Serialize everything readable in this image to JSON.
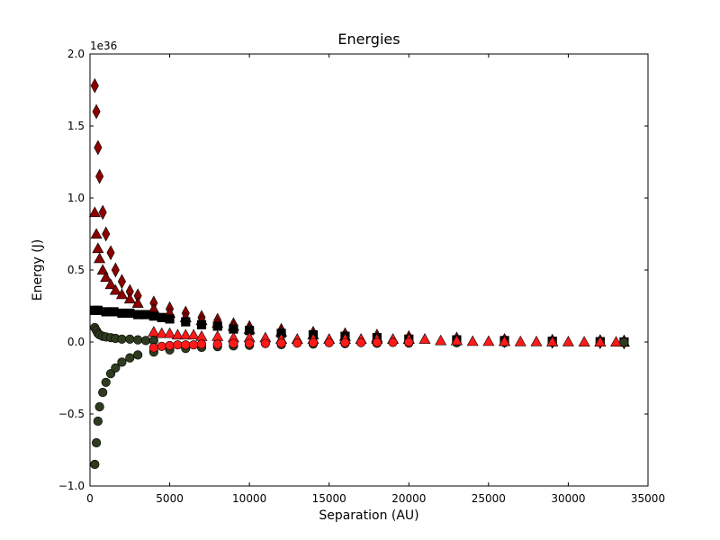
{
  "chart_data": {
    "type": "scatter",
    "title": "Energies",
    "xlabel": "Separation (AU)",
    "ylabel": "Energy (J)",
    "y_offset_label": "1e36",
    "y_scale": 1e+36,
    "xlim": [
      0,
      35000
    ],
    "ylim": [
      -1.0,
      2.0
    ],
    "x_ticks": [
      0,
      5000,
      10000,
      15000,
      20000,
      25000,
      30000,
      35000
    ],
    "x_tick_labels": [
      "0",
      "5000",
      "10000",
      "15000",
      "20000",
      "25000",
      "30000",
      "35000"
    ],
    "y_ticks": [
      -1.0,
      -0.5,
      0.0,
      0.5,
      1.0,
      1.5,
      2.0
    ],
    "y_tick_labels": [
      "−1.0",
      "−0.5",
      "0.0",
      "0.5",
      "1.0",
      "1.5",
      "2.0"
    ],
    "grid": false,
    "series": [
      {
        "marker": "diamond",
        "color": "#8b0000",
        "x": [
          300,
          400,
          500,
          600,
          800,
          1000,
          1300,
          1600,
          2000,
          2500,
          3000,
          4000,
          5000,
          6000,
          7000,
          8000,
          9000,
          10000,
          12000,
          14000,
          16000,
          18000,
          20000,
          23000,
          26000,
          29000,
          32000,
          33500
        ],
        "y": [
          1.78,
          1.6,
          1.35,
          1.15,
          0.9,
          0.75,
          0.62,
          0.5,
          0.42,
          0.35,
          0.32,
          0.27,
          0.23,
          0.2,
          0.17,
          0.15,
          0.12,
          0.1,
          0.08,
          0.06,
          0.05,
          0.04,
          0.03,
          0.02,
          0.01,
          0.005,
          0.003,
          0.0
        ]
      },
      {
        "marker": "triangle",
        "color": "#8b0000",
        "x": [
          300,
          400,
          500,
          600,
          800,
          1000,
          1300,
          1600,
          2000,
          2500,
          3000,
          4000,
          5000,
          6000,
          7000,
          8000,
          9000,
          10000,
          12000,
          14000,
          16000,
          18000,
          20000,
          23000,
          26000,
          29000,
          32000,
          33500
        ],
        "y": [
          0.9,
          0.75,
          0.65,
          0.58,
          0.5,
          0.45,
          0.4,
          0.36,
          0.33,
          0.3,
          0.27,
          0.23,
          0.2,
          0.17,
          0.15,
          0.13,
          0.11,
          0.09,
          0.07,
          0.05,
          0.04,
          0.03,
          0.02,
          0.01,
          0.005,
          0.003,
          0.001,
          0.0
        ]
      },
      {
        "marker": "square",
        "color": "#000000",
        "x": [
          300,
          500,
          1000,
          1500,
          2000,
          2500,
          3000,
          3500,
          4000,
          4500,
          5000,
          6000,
          7000,
          8000,
          9000,
          10000,
          12000,
          14000,
          16000,
          18000,
          20000,
          23000,
          26000,
          29000,
          32000,
          33500
        ],
        "y": [
          0.22,
          0.22,
          0.21,
          0.21,
          0.2,
          0.2,
          0.19,
          0.19,
          0.18,
          0.17,
          0.16,
          0.14,
          0.12,
          0.11,
          0.09,
          0.08,
          0.06,
          0.05,
          0.04,
          0.03,
          0.02,
          0.015,
          0.01,
          0.005,
          0.002,
          0.0
        ]
      },
      {
        "marker": "circle",
        "color": "#2e3b1e",
        "x": [
          300,
          400,
          500,
          600,
          800,
          1000,
          1300,
          1600,
          2000,
          2500,
          3000,
          3500,
          4000
        ],
        "y": [
          0.1,
          0.08,
          0.06,
          0.05,
          0.04,
          0.035,
          0.03,
          0.025,
          0.02,
          0.02,
          0.015,
          0.01,
          0.01
        ]
      },
      {
        "marker": "circle",
        "color": "#2e3b1e",
        "x": [
          300,
          400,
          500,
          600,
          800,
          1000,
          1300,
          1600,
          2000,
          2500,
          3000,
          4000,
          5000,
          6000,
          7000,
          8000,
          9000,
          10000,
          12000,
          14000,
          16000,
          18000,
          20000,
          23000,
          26000,
          29000,
          32000,
          33500
        ],
        "y": [
          -0.85,
          -0.7,
          -0.55,
          -0.45,
          -0.35,
          -0.28,
          -0.22,
          -0.18,
          -0.14,
          -0.11,
          -0.09,
          -0.07,
          -0.055,
          -0.045,
          -0.038,
          -0.032,
          -0.027,
          -0.023,
          -0.018,
          -0.014,
          -0.011,
          -0.009,
          -0.007,
          -0.005,
          -0.004,
          -0.003,
          -0.002,
          -0.002
        ]
      },
      {
        "marker": "triangle",
        "color": "#ff1a1a",
        "x": [
          4000,
          4500,
          5000,
          5500,
          6000,
          6500,
          7000,
          8000,
          9000,
          10000,
          11000,
          12000,
          13000,
          14000,
          15000,
          16000,
          17000,
          18000,
          19000,
          20000,
          21000,
          22000,
          23000,
          24000,
          25000,
          26000,
          27000,
          28000,
          29000,
          30000,
          31000,
          32000,
          33000
        ],
        "y": [
          0.07,
          0.06,
          0.06,
          0.05,
          0.05,
          0.05,
          0.04,
          0.04,
          0.03,
          0.03,
          0.03,
          0.02,
          0.02,
          0.02,
          0.02,
          0.02,
          0.02,
          0.02,
          0.02,
          0.02,
          0.02,
          0.01,
          0.01,
          0.005,
          0.005,
          0.005,
          0.003,
          0.003,
          0.002,
          0.002,
          0.001,
          0.001,
          0.001
        ]
      },
      {
        "marker": "circle",
        "color": "#ff1a1a",
        "x": [
          4000,
          4500,
          5000,
          5500,
          6000,
          6500,
          7000,
          8000,
          9000,
          10000,
          11000,
          12000,
          13000,
          14000,
          15000,
          16000,
          17000,
          18000,
          19000,
          20000
        ],
        "y": [
          -0.04,
          -0.03,
          -0.025,
          -0.02,
          -0.02,
          -0.02,
          -0.015,
          -0.015,
          -0.01,
          -0.01,
          -0.01,
          -0.008,
          -0.008,
          -0.005,
          -0.005,
          -0.005,
          -0.004,
          -0.003,
          -0.003,
          -0.002
        ]
      }
    ]
  }
}
